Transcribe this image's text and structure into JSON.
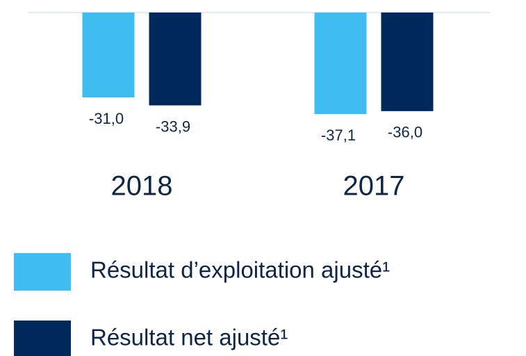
{
  "chart_data": {
    "type": "bar",
    "categories": [
      "2018",
      "2017"
    ],
    "series": [
      {
        "name": "Résultat d’exploitation ajusté¹",
        "color": "#3fbcf0",
        "values": [
          -31.0,
          -37.1
        ],
        "value_labels": [
          "-31,0",
          "-37,1"
        ]
      },
      {
        "name": "Résultat net ajusté¹",
        "color": "#00285a",
        "values": [
          -33.9,
          -36.0
        ],
        "value_labels": [
          "-33,9",
          "-36,0"
        ]
      }
    ],
    "ylim": [
      -40,
      0
    ]
  }
}
